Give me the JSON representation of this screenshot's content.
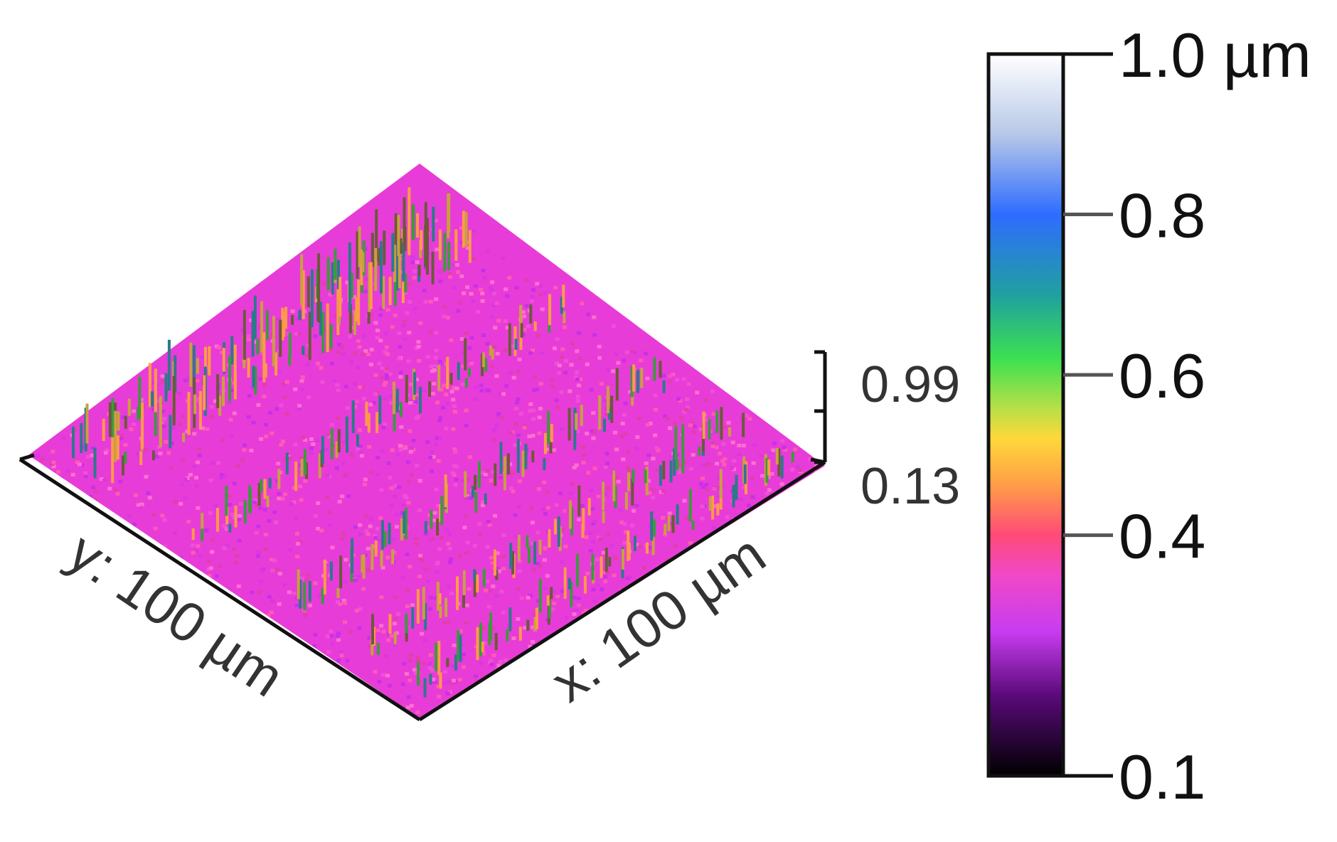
{
  "chart_data": {
    "type": "heatmap",
    "title": "",
    "xlabel": "x: 100 µm",
    "ylabel": "y: 100 µm",
    "z_range_labels": {
      "max": "0.99",
      "min": "0.13"
    },
    "z_range": [
      0.13,
      0.99
    ],
    "colorbar": {
      "range": [
        0.1,
        1.0
      ],
      "unit": "µm",
      "top_label": "1.0 µm",
      "tick_labels": [
        "0.8",
        "0.6",
        "0.4"
      ],
      "ticks": [
        0.8,
        0.6,
        0.4
      ],
      "bottom_label": "0.1",
      "colormap": [
        {
          "v": 0.1,
          "c": "#000000"
        },
        {
          "v": 0.2,
          "c": "#5a0a7a"
        },
        {
          "v": 0.28,
          "c": "#c83cf0"
        },
        {
          "v": 0.35,
          "c": "#f048c8"
        },
        {
          "v": 0.4,
          "c": "#ff4a78"
        },
        {
          "v": 0.46,
          "c": "#ff9a48"
        },
        {
          "v": 0.52,
          "c": "#ffd83a"
        },
        {
          "v": 0.56,
          "c": "#b4e048"
        },
        {
          "v": 0.62,
          "c": "#3ce050"
        },
        {
          "v": 0.7,
          "c": "#20a0a0"
        },
        {
          "v": 0.8,
          "c": "#2e6cff"
        },
        {
          "v": 0.9,
          "c": "#b8c8e8"
        },
        {
          "v": 1.0,
          "c": "#ffffff"
        }
      ]
    },
    "surface": {
      "base_color": "#e83cd8",
      "ridge_colors": [
        "#3c9a3c",
        "#c8a040",
        "#2a7a8a",
        "#ff9a48",
        "#6a5a3a"
      ]
    }
  }
}
